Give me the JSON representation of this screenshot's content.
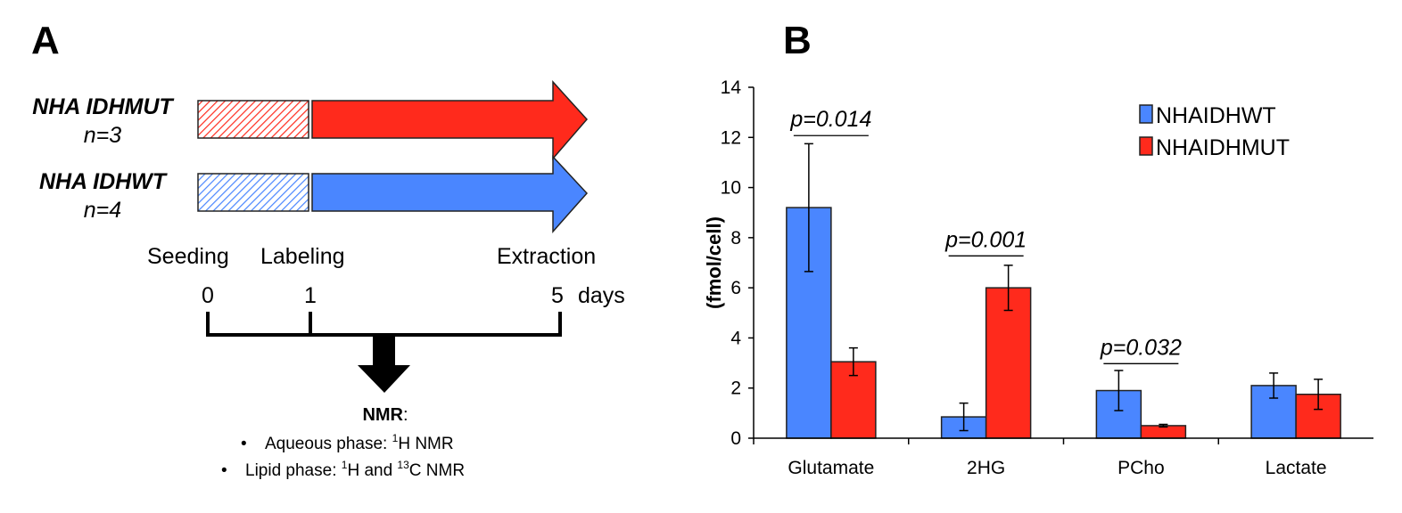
{
  "panel_a": {
    "letter": "A",
    "groups": [
      {
        "name": "NHA IDHMUT",
        "n": "n=3",
        "color": "#ff2a1c"
      },
      {
        "name": "NHA IDHWT",
        "n": "n=4",
        "color": "#4a86ff"
      }
    ],
    "stages": [
      "Seeding",
      "Labeling",
      "Extraction"
    ],
    "timepoints": [
      "0",
      "1",
      "5"
    ],
    "time_unit": "days",
    "nmr_title": "NMR",
    "nmr_colon": ":",
    "bullets": [
      {
        "pre": "Aqueous phase: ",
        "sup1": "1",
        "mid": "H NMR",
        "sup2": "",
        "post": ""
      },
      {
        "pre": "Lipid phase: ",
        "sup1": "1",
        "mid": "H and ",
        "sup2": "13",
        "post": "C NMR"
      }
    ],
    "bullet_char": "•"
  },
  "panel_b": {
    "letter": "B"
  },
  "chart_data": {
    "type": "bar",
    "title": "",
    "xlabel": "",
    "ylabel": "(fmol/cell)",
    "ylim": [
      0,
      14
    ],
    "yticks": [
      "0",
      "2",
      "4",
      "6",
      "8",
      "10",
      "12",
      "14"
    ],
    "categories": [
      "Glutamate",
      "2HG",
      "PCho",
      "Lactate"
    ],
    "series": [
      {
        "name": "NHAIDHWT",
        "color": "#4a86ff",
        "values": [
          9.2,
          0.85,
          1.9,
          2.1
        ],
        "errors": [
          2.55,
          0.55,
          0.8,
          0.5
        ]
      },
      {
        "name": "NHAIDHMUT",
        "color": "#ff2a1c",
        "values": [
          3.05,
          6.0,
          0.5,
          1.75
        ],
        "errors": [
          0.55,
          0.9,
          0.05,
          0.6
        ]
      }
    ],
    "annotations": [
      {
        "text": "p=0.014",
        "category": "Glutamate",
        "y": 12.5
      },
      {
        "text": "p=0.001",
        "category": "2HG",
        "y": 7.7
      },
      {
        "text": "p=0.032",
        "category": "PCho",
        "y": 3.4
      }
    ],
    "legend": "top-right",
    "grid": false
  }
}
